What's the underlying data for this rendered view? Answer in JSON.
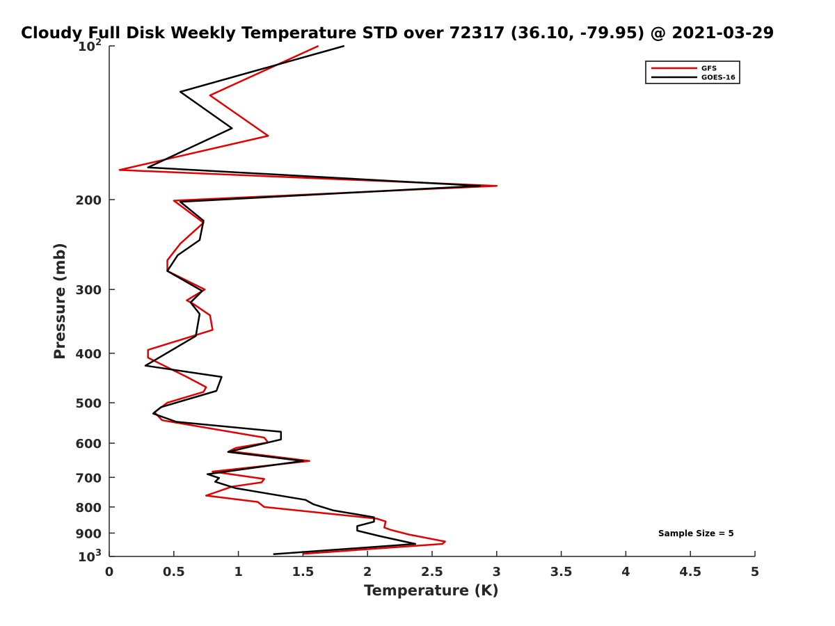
{
  "chart_data": {
    "type": "line",
    "title": "Cloudy Full Disk Weekly Temperature STD over 72317 (36.10, -79.95) @ 2021-03-29",
    "xlabel": "Temperature (K)",
    "ylabel": "Pressure (mb)",
    "xlim": [
      0,
      5
    ],
    "ylim": [
      100,
      1000
    ],
    "yscale": "log",
    "y_reversed": true,
    "grid": false,
    "legend_position": "top-right",
    "x_ticks": [
      "0",
      "0.5",
      "1",
      "1.5",
      "2",
      "2.5",
      "3",
      "3.5",
      "4",
      "4.5",
      "5"
    ],
    "y_ticks": [
      {
        "value": 100,
        "label": "10",
        "sup": "2"
      },
      {
        "value": 200,
        "label": "200",
        "sup": ""
      },
      {
        "value": 300,
        "label": "300",
        "sup": ""
      },
      {
        "value": 400,
        "label": "400",
        "sup": ""
      },
      {
        "value": 500,
        "label": "500",
        "sup": ""
      },
      {
        "value": 600,
        "label": "600",
        "sup": ""
      },
      {
        "value": 700,
        "label": "700",
        "sup": ""
      },
      {
        "value": 800,
        "label": "800",
        "sup": ""
      },
      {
        "value": 900,
        "label": "900",
        "sup": ""
      },
      {
        "value": 1000,
        "label": "10",
        "sup": "3"
      }
    ],
    "annotation": "Sample Size = 5",
    "series": [
      {
        "name": "GFS",
        "color": "#e00000",
        "points": [
          [
            1.62,
            100
          ],
          [
            0.78,
            125
          ],
          [
            1.23,
            150
          ],
          [
            0.08,
            175
          ],
          [
            3.0,
            188
          ],
          [
            0.5,
            201
          ],
          [
            0.73,
            222
          ],
          [
            0.55,
            244
          ],
          [
            0.45,
            263
          ],
          [
            0.45,
            276
          ],
          [
            0.74,
            300
          ],
          [
            0.6,
            315
          ],
          [
            0.65,
            320
          ],
          [
            0.78,
            337
          ],
          [
            0.8,
            360
          ],
          [
            0.3,
            394
          ],
          [
            0.3,
            408
          ],
          [
            0.6,
            445
          ],
          [
            0.75,
            466
          ],
          [
            0.73,
            476
          ],
          [
            0.45,
            500
          ],
          [
            0.35,
            522
          ],
          [
            0.41,
            541
          ],
          [
            1.2,
            585
          ],
          [
            1.23,
            598
          ],
          [
            0.98,
            613
          ],
          [
            0.93,
            622
          ],
          [
            1.55,
            650
          ],
          [
            0.8,
            682
          ],
          [
            1.2,
            705
          ],
          [
            1.18,
            716
          ],
          [
            0.95,
            730
          ],
          [
            0.75,
            760
          ],
          [
            1.15,
            782
          ],
          [
            1.2,
            800
          ],
          [
            2.07,
            843
          ],
          [
            2.14,
            854
          ],
          [
            2.13,
            878
          ],
          [
            2.18,
            887
          ],
          [
            2.32,
            906
          ],
          [
            2.6,
            935
          ],
          [
            2.58,
            945
          ],
          [
            1.5,
            988
          ]
        ]
      },
      {
        "name": "GOES-16",
        "color": "#000000",
        "points": [
          [
            1.82,
            100
          ],
          [
            0.55,
            123
          ],
          [
            0.95,
            145
          ],
          [
            0.3,
            173
          ],
          [
            2.87,
            188
          ],
          [
            0.55,
            202
          ],
          [
            0.73,
            220
          ],
          [
            0.7,
            240
          ],
          [
            0.53,
            257
          ],
          [
            0.45,
            276
          ],
          [
            0.72,
            302
          ],
          [
            0.63,
            318
          ],
          [
            0.7,
            335
          ],
          [
            0.67,
            370
          ],
          [
            0.28,
            423
          ],
          [
            0.87,
            445
          ],
          [
            0.83,
            474
          ],
          [
            0.4,
            510
          ],
          [
            0.34,
            525
          ],
          [
            0.52,
            545
          ],
          [
            1.33,
            570
          ],
          [
            1.33,
            590
          ],
          [
            0.92,
            624
          ],
          [
            1.5,
            650
          ],
          [
            0.76,
            690
          ],
          [
            0.85,
            702
          ],
          [
            0.82,
            714
          ],
          [
            0.98,
            735
          ],
          [
            1.52,
            775
          ],
          [
            1.58,
            790
          ],
          [
            1.73,
            812
          ],
          [
            2.05,
            838
          ],
          [
            2.05,
            855
          ],
          [
            1.92,
            872
          ],
          [
            1.92,
            890
          ],
          [
            2.1,
            913
          ],
          [
            2.37,
            945
          ],
          [
            1.27,
            990
          ]
        ]
      }
    ]
  }
}
